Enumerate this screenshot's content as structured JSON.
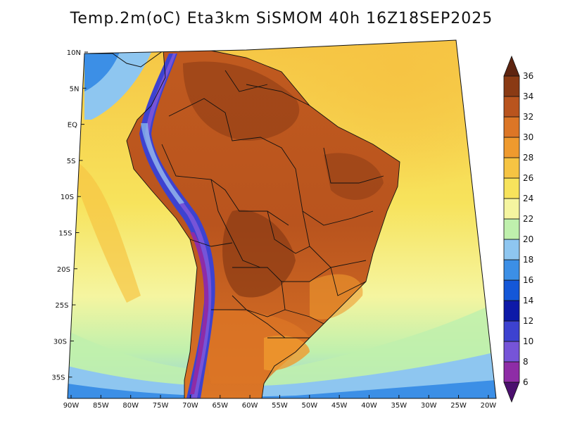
{
  "title": "Temp.2m(oC) Eta3km SiSMOM 40h 16Z18SEP2025",
  "chart_data": {
    "type": "heatmap",
    "variable": "Temp.2m",
    "units": "oC",
    "model": "Eta3km SiSMOM",
    "forecast_hour": "40h",
    "valid_time": "16Z18SEP2025",
    "lat_ticks": [
      "10N",
      "5N",
      "EQ",
      "5S",
      "10S",
      "15S",
      "20S",
      "25S",
      "30S",
      "35S"
    ],
    "lon_ticks": [
      "90W",
      "85W",
      "80W",
      "75W",
      "70W",
      "65W",
      "60W",
      "55W",
      "50W",
      "45W",
      "40W",
      "35W",
      "30W",
      "25W",
      "20W"
    ],
    "colorbar": {
      "tick_labels": [
        "6",
        "8",
        "10",
        "12",
        "14",
        "16",
        "18",
        "20",
        "22",
        "24",
        "26",
        "28",
        "30",
        "32",
        "34",
        "36"
      ],
      "colors": [
        "#4b0f6e",
        "#8e2ca6",
        "#7654d8",
        "#3d42d0",
        "#0d19a8",
        "#1457d8",
        "#3c8fe6",
        "#8ec6f0",
        "#bff0ad",
        "#f5f5a0",
        "#f7e35c",
        "#f6c443",
        "#ef9a2e",
        "#dc7626",
        "#b9541e",
        "#8a3a14",
        "#5e2410"
      ]
    },
    "lat_range": [
      "10N",
      "35S"
    ],
    "lon_range": [
      "90W",
      "20W"
    ]
  }
}
